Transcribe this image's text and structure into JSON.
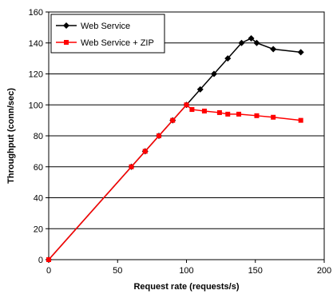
{
  "chart_data": {
    "type": "line",
    "xlabel": "Request rate (requests/s)",
    "ylabel": "Throughput (conn/sec)",
    "xlim": [
      0,
      200
    ],
    "ylim": [
      0,
      160
    ],
    "xticks": [
      0,
      50,
      100,
      150,
      200
    ],
    "yticks": [
      0,
      20,
      40,
      60,
      80,
      100,
      120,
      140,
      160
    ],
    "grid": "horizontal",
    "legend": "top-left",
    "series": [
      {
        "name": "Web Service",
        "color": "#000000",
        "marker": "diamond",
        "x": [
          0,
          60,
          70,
          80,
          90,
          100,
          110,
          120,
          130,
          140,
          147,
          151,
          163,
          183
        ],
        "y": [
          0,
          60,
          70,
          80,
          90,
          100,
          110,
          120,
          130,
          140,
          143,
          140,
          136,
          134
        ]
      },
      {
        "name": "Web Service + ZIP",
        "color": "#ff0000",
        "marker": "square",
        "x": [
          0,
          60,
          70,
          80,
          90,
          100,
          104,
          113,
          124,
          130,
          138,
          151,
          163,
          183
        ],
        "y": [
          0,
          60,
          70,
          80,
          90,
          100,
          97,
          96,
          95,
          94,
          94,
          93,
          92,
          90
        ]
      }
    ]
  }
}
